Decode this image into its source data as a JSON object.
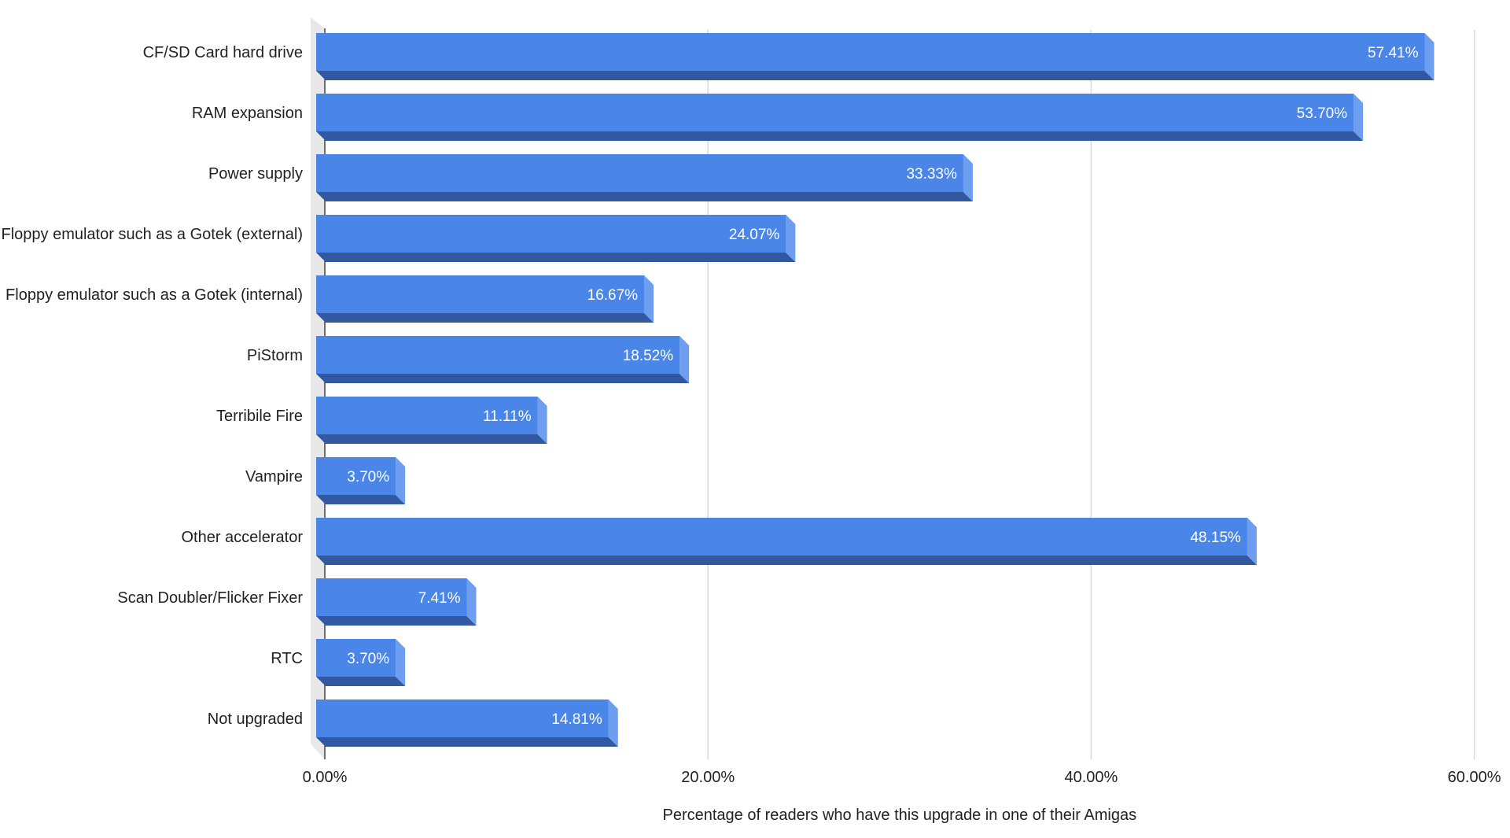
{
  "chart_data": {
    "type": "bar",
    "orientation": "horizontal",
    "style": "3d",
    "categories": [
      "CF/SD Card hard drive",
      "RAM expansion",
      "Power supply",
      "Floppy emulator such as a Gotek (external)",
      "Floppy emulator such as a Gotek (internal)",
      "PiStorm",
      "Terribile Fire",
      "Vampire",
      "Other accelerator",
      "Scan Doubler/Flicker Fixer",
      "RTC",
      "Not upgraded"
    ],
    "values": [
      57.41,
      53.7,
      33.33,
      24.07,
      16.67,
      18.52,
      11.11,
      3.7,
      48.15,
      7.41,
      3.7,
      14.81
    ],
    "value_labels": [
      "57.41%",
      "53.70%",
      "33.33%",
      "24.07%",
      "16.67%",
      "18.52%",
      "11.11%",
      "3.70%",
      "48.15%",
      "7.41%",
      "3.70%",
      "14.81%"
    ],
    "xlabel": "Percentage of readers who have this upgrade in one of their Amigas",
    "ylabel": "",
    "title": "",
    "xlim": [
      0,
      60
    ],
    "x_ticks": [
      0,
      20,
      40,
      60
    ],
    "x_tick_labels": [
      "0.00%",
      "20.00%",
      "40.00%",
      "60.00%"
    ],
    "grid": true,
    "legend": "none",
    "colors": {
      "bar_front": "#4a86e8",
      "bar_bottom": "#3158a0",
      "bar_side": "#6d9ef0",
      "gridline": "#d9d9d9",
      "axis_wall": "#e8e8e8",
      "axis_line": "#444444"
    }
  }
}
